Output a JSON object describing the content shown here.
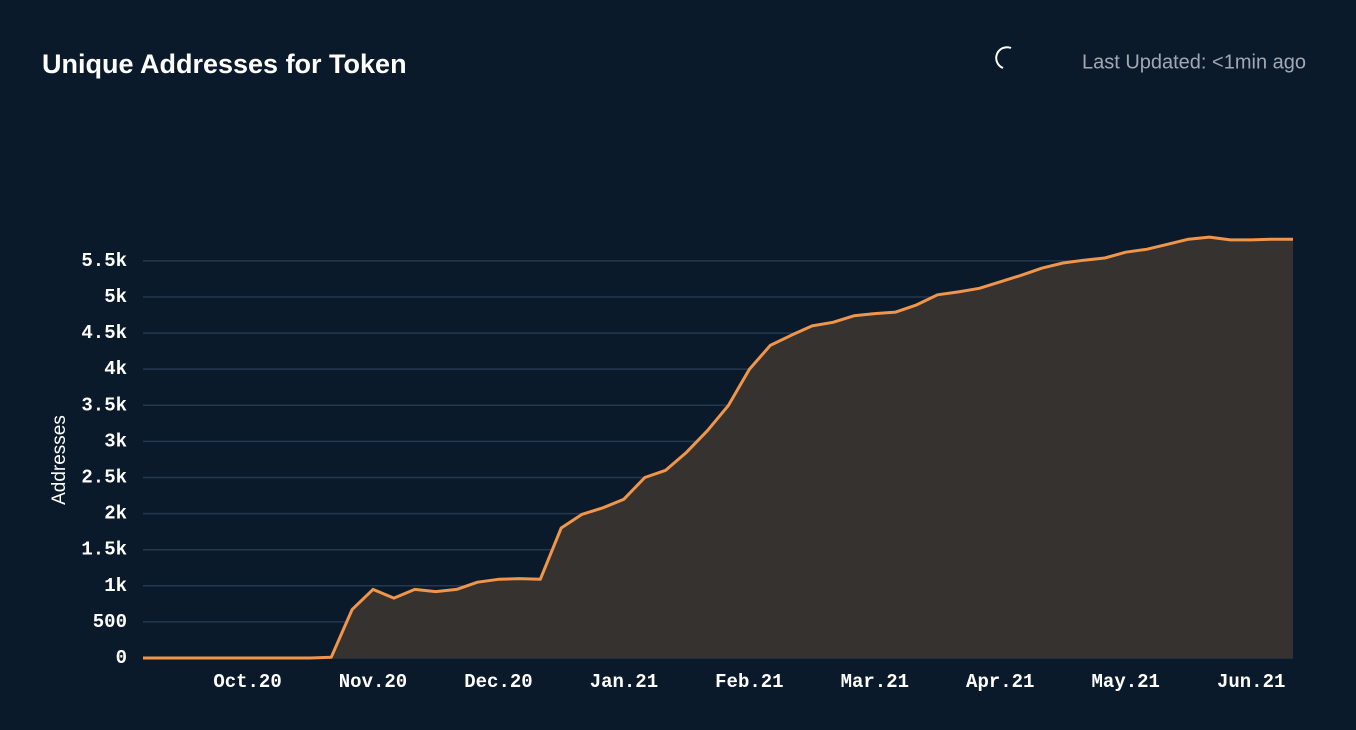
{
  "header": {
    "last_updated": "Last Updated: <1min ago"
  },
  "chart_data": {
    "type": "area",
    "title": "Unique Addresses for Token",
    "y_label": "Addresses",
    "color": "#f0954a",
    "fill": "#353230",
    "grid": true,
    "categories": [
      null,
      null,
      null,
      null,
      null,
      "Oct.20",
      null,
      null,
      null,
      null,
      null,
      "Nov.20",
      null,
      null,
      null,
      null,
      null,
      "Dec.20",
      null,
      null,
      null,
      null,
      null,
      "Jan.21",
      null,
      null,
      null,
      null,
      null,
      "Feb.21",
      null,
      null,
      null,
      null,
      null,
      "Mar.21",
      null,
      null,
      null,
      null,
      null,
      "Apr.21",
      null,
      null,
      null,
      null,
      null,
      "May.21",
      null,
      null,
      null,
      null,
      null,
      "Jun.21",
      null,
      null
    ],
    "values": [
      0,
      0,
      0,
      0,
      0,
      0,
      0,
      0,
      0,
      10,
      670,
      950,
      830,
      950,
      920,
      950,
      1050,
      1090,
      1100,
      1090,
      1800,
      1990,
      2080,
      2200,
      2500,
      2600,
      2850,
      3150,
      3500,
      4000,
      4330,
      4470,
      4600,
      4650,
      4740,
      4770,
      4790,
      4890,
      5030,
      5070,
      5120,
      5210,
      5300,
      5400,
      5470,
      5510,
      5540,
      5620,
      5660,
      5730,
      5800,
      5830,
      5790,
      5790,
      5800,
      5800
    ],
    "ylim": [
      0,
      5900
    ],
    "yticks": [
      0,
      500,
      {
        "value": 1000,
        "label": "1k"
      },
      {
        "value": 1500,
        "label": "1.5k"
      },
      {
        "value": 2000,
        "label": "2k"
      },
      {
        "value": 2500,
        "label": "2.5k"
      },
      {
        "value": 3000,
        "label": "3k"
      },
      {
        "value": 3500,
        "label": "3.5k"
      },
      {
        "value": 4000,
        "label": "4k"
      },
      {
        "value": 4500,
        "label": "4.5k"
      },
      {
        "value": 5000,
        "label": "5k"
      },
      {
        "value": 5500,
        "label": "5.5k"
      }
    ]
  }
}
